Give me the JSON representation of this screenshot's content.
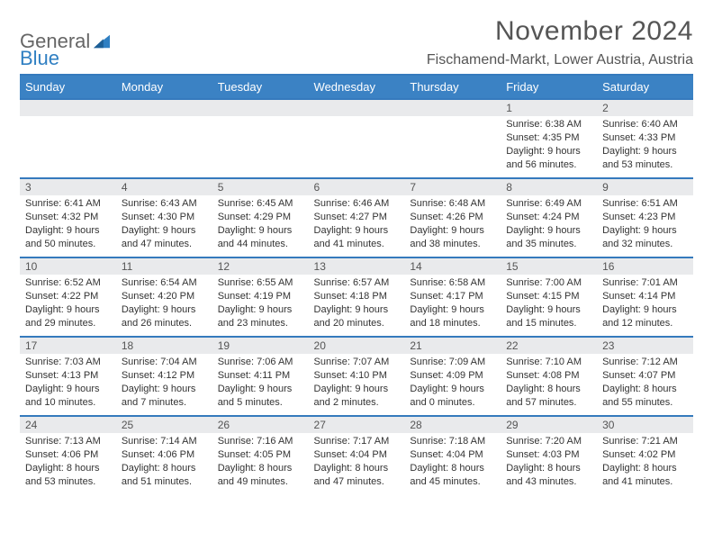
{
  "logo": {
    "line1": "General",
    "line2": "Blue",
    "accent": "#2f7fc2"
  },
  "header": {
    "month_title": "November 2024",
    "location": "Fischamend-Markt, Lower Austria, Austria"
  },
  "colors": {
    "header_bg": "#3b82c4",
    "rule": "#357abd",
    "daynum_bg": "#e9eaec",
    "text": "#333333"
  },
  "calendar": {
    "day_headers": [
      "Sunday",
      "Monday",
      "Tuesday",
      "Wednesday",
      "Thursday",
      "Friday",
      "Saturday"
    ],
    "weeks": [
      [
        null,
        null,
        null,
        null,
        null,
        {
          "n": "1",
          "sunrise": "Sunrise: 6:38 AM",
          "sunset": "Sunset: 4:35 PM",
          "daylight": "Daylight: 9 hours and 56 minutes."
        },
        {
          "n": "2",
          "sunrise": "Sunrise: 6:40 AM",
          "sunset": "Sunset: 4:33 PM",
          "daylight": "Daylight: 9 hours and 53 minutes."
        }
      ],
      [
        {
          "n": "3",
          "sunrise": "Sunrise: 6:41 AM",
          "sunset": "Sunset: 4:32 PM",
          "daylight": "Daylight: 9 hours and 50 minutes."
        },
        {
          "n": "4",
          "sunrise": "Sunrise: 6:43 AM",
          "sunset": "Sunset: 4:30 PM",
          "daylight": "Daylight: 9 hours and 47 minutes."
        },
        {
          "n": "5",
          "sunrise": "Sunrise: 6:45 AM",
          "sunset": "Sunset: 4:29 PM",
          "daylight": "Daylight: 9 hours and 44 minutes."
        },
        {
          "n": "6",
          "sunrise": "Sunrise: 6:46 AM",
          "sunset": "Sunset: 4:27 PM",
          "daylight": "Daylight: 9 hours and 41 minutes."
        },
        {
          "n": "7",
          "sunrise": "Sunrise: 6:48 AM",
          "sunset": "Sunset: 4:26 PM",
          "daylight": "Daylight: 9 hours and 38 minutes."
        },
        {
          "n": "8",
          "sunrise": "Sunrise: 6:49 AM",
          "sunset": "Sunset: 4:24 PM",
          "daylight": "Daylight: 9 hours and 35 minutes."
        },
        {
          "n": "9",
          "sunrise": "Sunrise: 6:51 AM",
          "sunset": "Sunset: 4:23 PM",
          "daylight": "Daylight: 9 hours and 32 minutes."
        }
      ],
      [
        {
          "n": "10",
          "sunrise": "Sunrise: 6:52 AM",
          "sunset": "Sunset: 4:22 PM",
          "daylight": "Daylight: 9 hours and 29 minutes."
        },
        {
          "n": "11",
          "sunrise": "Sunrise: 6:54 AM",
          "sunset": "Sunset: 4:20 PM",
          "daylight": "Daylight: 9 hours and 26 minutes."
        },
        {
          "n": "12",
          "sunrise": "Sunrise: 6:55 AM",
          "sunset": "Sunset: 4:19 PM",
          "daylight": "Daylight: 9 hours and 23 minutes."
        },
        {
          "n": "13",
          "sunrise": "Sunrise: 6:57 AM",
          "sunset": "Sunset: 4:18 PM",
          "daylight": "Daylight: 9 hours and 20 minutes."
        },
        {
          "n": "14",
          "sunrise": "Sunrise: 6:58 AM",
          "sunset": "Sunset: 4:17 PM",
          "daylight": "Daylight: 9 hours and 18 minutes."
        },
        {
          "n": "15",
          "sunrise": "Sunrise: 7:00 AM",
          "sunset": "Sunset: 4:15 PM",
          "daylight": "Daylight: 9 hours and 15 minutes."
        },
        {
          "n": "16",
          "sunrise": "Sunrise: 7:01 AM",
          "sunset": "Sunset: 4:14 PM",
          "daylight": "Daylight: 9 hours and 12 minutes."
        }
      ],
      [
        {
          "n": "17",
          "sunrise": "Sunrise: 7:03 AM",
          "sunset": "Sunset: 4:13 PM",
          "daylight": "Daylight: 9 hours and 10 minutes."
        },
        {
          "n": "18",
          "sunrise": "Sunrise: 7:04 AM",
          "sunset": "Sunset: 4:12 PM",
          "daylight": "Daylight: 9 hours and 7 minutes."
        },
        {
          "n": "19",
          "sunrise": "Sunrise: 7:06 AM",
          "sunset": "Sunset: 4:11 PM",
          "daylight": "Daylight: 9 hours and 5 minutes."
        },
        {
          "n": "20",
          "sunrise": "Sunrise: 7:07 AM",
          "sunset": "Sunset: 4:10 PM",
          "daylight": "Daylight: 9 hours and 2 minutes."
        },
        {
          "n": "21",
          "sunrise": "Sunrise: 7:09 AM",
          "sunset": "Sunset: 4:09 PM",
          "daylight": "Daylight: 9 hours and 0 minutes."
        },
        {
          "n": "22",
          "sunrise": "Sunrise: 7:10 AM",
          "sunset": "Sunset: 4:08 PM",
          "daylight": "Daylight: 8 hours and 57 minutes."
        },
        {
          "n": "23",
          "sunrise": "Sunrise: 7:12 AM",
          "sunset": "Sunset: 4:07 PM",
          "daylight": "Daylight: 8 hours and 55 minutes."
        }
      ],
      [
        {
          "n": "24",
          "sunrise": "Sunrise: 7:13 AM",
          "sunset": "Sunset: 4:06 PM",
          "daylight": "Daylight: 8 hours and 53 minutes."
        },
        {
          "n": "25",
          "sunrise": "Sunrise: 7:14 AM",
          "sunset": "Sunset: 4:06 PM",
          "daylight": "Daylight: 8 hours and 51 minutes."
        },
        {
          "n": "26",
          "sunrise": "Sunrise: 7:16 AM",
          "sunset": "Sunset: 4:05 PM",
          "daylight": "Daylight: 8 hours and 49 minutes."
        },
        {
          "n": "27",
          "sunrise": "Sunrise: 7:17 AM",
          "sunset": "Sunset: 4:04 PM",
          "daylight": "Daylight: 8 hours and 47 minutes."
        },
        {
          "n": "28",
          "sunrise": "Sunrise: 7:18 AM",
          "sunset": "Sunset: 4:04 PM",
          "daylight": "Daylight: 8 hours and 45 minutes."
        },
        {
          "n": "29",
          "sunrise": "Sunrise: 7:20 AM",
          "sunset": "Sunset: 4:03 PM",
          "daylight": "Daylight: 8 hours and 43 minutes."
        },
        {
          "n": "30",
          "sunrise": "Sunrise: 7:21 AM",
          "sunset": "Sunset: 4:02 PM",
          "daylight": "Daylight: 8 hours and 41 minutes."
        }
      ]
    ]
  }
}
